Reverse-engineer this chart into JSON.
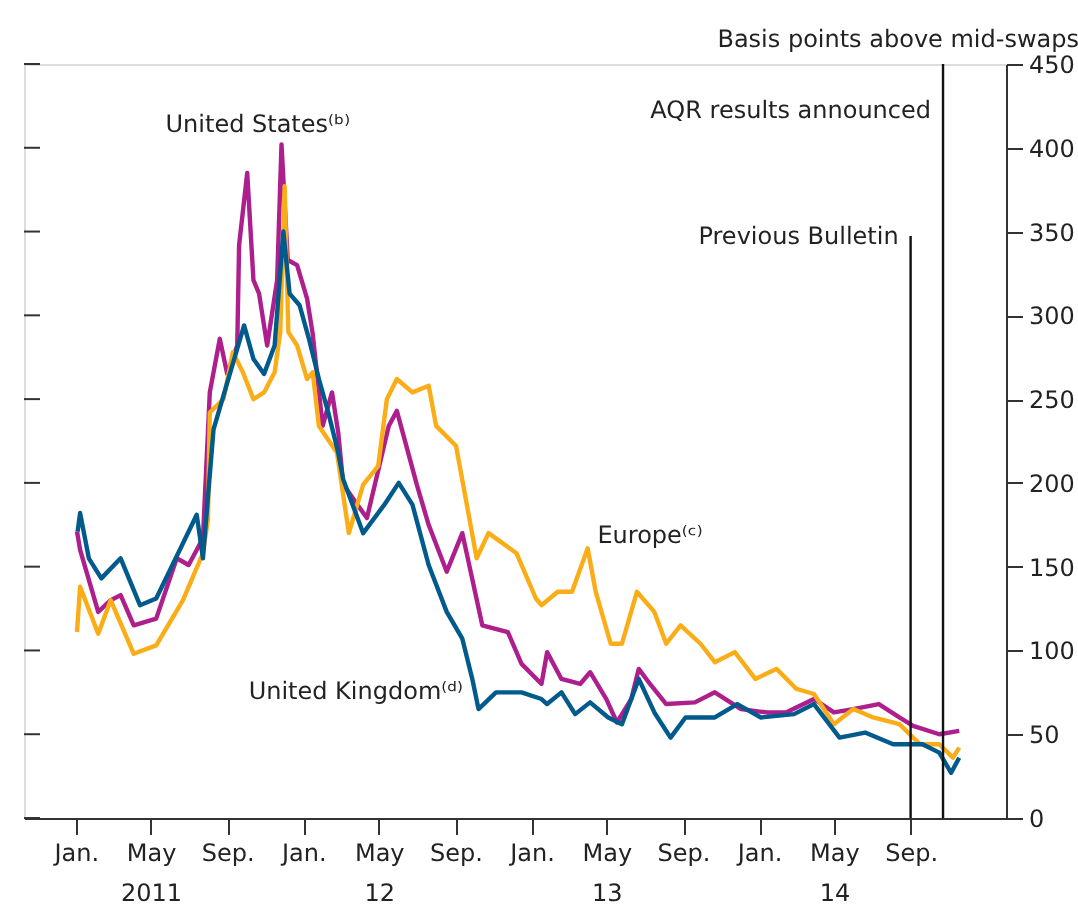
{
  "chart_data": {
    "type": "line",
    "ylabel": "Basis points above mid-swaps",
    "xlim": [
      "2010-10-10",
      "2015-02-01"
    ],
    "xticks": [
      {
        "value": "2011-01-01",
        "label": "Jan."
      },
      {
        "value": "2011-05-01",
        "label": "May\n2011"
      },
      {
        "value": "2011-09-01",
        "label": "Sep."
      },
      {
        "value": "2012-01-01",
        "label": "Jan."
      },
      {
        "value": "2012-05-01",
        "label": "May\n12"
      },
      {
        "value": "2012-09-01",
        "label": "Sep."
      },
      {
        "value": "2013-01-01",
        "label": "Jan."
      },
      {
        "value": "2013-05-01",
        "label": "May\n13"
      },
      {
        "value": "2013-09-01",
        "label": "Sep."
      },
      {
        "value": "2014-01-01",
        "label": "Jan."
      },
      {
        "value": "2014-05-01",
        "label": "May\n14"
      },
      {
        "value": "2014-09-01",
        "label": "Sep."
      }
    ],
    "ylim": [
      0,
      450
    ],
    "yticks": [
      0,
      50,
      100,
      150,
      200,
      250,
      300,
      350,
      400,
      450
    ],
    "grid": false,
    "line_style": "solid",
    "marker": "none",
    "series": [
      {
        "name": "United States⁽ᵇ⁾",
        "color": "#ad1f8c",
        "x": [
          "2011-01-03",
          "2011-01-08",
          "2011-02-06",
          "2011-02-26",
          "2011-03-14",
          "2011-04-04",
          "2011-05-10",
          "2011-06-12",
          "2011-07-01",
          "2011-07-24",
          "2011-08-04",
          "2011-08-20",
          "2011-09-01",
          "2011-09-17",
          "2011-09-20",
          "2011-10-03",
          "2011-10-13",
          "2011-10-22",
          "2011-11-04",
          "2011-11-20",
          "2011-11-27",
          "2011-12-07",
          "2011-12-22",
          "2012-01-07",
          "2012-01-16",
          "2012-02-01",
          "2012-02-16",
          "2012-02-26",
          "2012-03-05",
          "2012-04-12",
          "2012-05-17",
          "2012-05-30",
          "2012-07-01",
          "2012-07-20",
          "2012-08-18",
          "2012-09-12",
          "2012-10-14",
          "2012-11-24",
          "2012-12-16",
          "2013-01-17",
          "2013-01-26",
          "2013-02-18",
          "2013-03-20",
          "2013-04-05",
          "2013-05-01",
          "2013-05-18",
          "2013-06-10",
          "2013-06-22",
          "2013-07-10",
          "2013-08-05",
          "2013-09-20",
          "2013-10-22",
          "2013-12-03",
          "2014-01-13",
          "2014-02-13",
          "2014-03-30",
          "2014-05-01",
          "2014-06-01",
          "2014-07-12",
          "2014-08-14",
          "2014-09-05",
          "2014-10-17",
          "2014-11-18"
        ],
        "values": [
          171,
          160,
          123,
          130,
          133,
          115,
          119,
          155,
          151,
          167,
          254,
          286,
          265,
          282,
          342,
          385,
          321,
          313,
          282,
          321,
          402,
          333,
          330,
          310,
          289,
          234,
          254,
          230,
          199,
          179,
          234,
          243,
          199,
          175,
          147,
          170,
          115,
          111,
          92,
          80,
          99,
          83,
          80,
          87,
          71,
          57,
          71,
          89,
          80,
          68,
          69,
          75,
          65,
          63,
          63,
          71,
          63,
          65,
          68,
          60,
          55,
          50,
          52
        ]
      },
      {
        "name": "Europe⁽ᶜ⁾",
        "color": "#fbad18",
        "x": [
          "2011-01-03",
          "2011-01-08",
          "2011-02-06",
          "2011-02-26",
          "2011-04-04",
          "2011-05-10",
          "2011-06-22",
          "2011-07-24",
          "2011-08-01",
          "2011-08-04",
          "2011-08-26",
          "2011-09-10",
          "2011-09-26",
          "2011-10-13",
          "2011-10-30",
          "2011-11-16",
          "2011-11-25",
          "2011-12-02",
          "2011-12-08",
          "2011-12-22",
          "2012-01-07",
          "2012-01-16",
          "2012-01-26",
          "2012-02-24",
          "2012-03-14",
          "2012-04-06",
          "2012-04-30",
          "2012-05-14",
          "2012-05-30",
          "2012-06-24",
          "2012-07-20",
          "2012-08-01",
          "2012-09-02",
          "2012-10-05",
          "2012-10-24",
          "2012-12-08",
          "2013-01-08",
          "2013-01-17",
          "2013-02-12",
          "2013-03-07",
          "2013-04-01",
          "2013-04-14",
          "2013-05-08",
          "2013-05-26",
          "2013-06-19",
          "2013-07-17",
          "2013-08-05",
          "2013-08-28",
          "2013-09-29",
          "2013-10-22",
          "2013-11-23",
          "2013-12-26",
          "2014-01-29",
          "2014-03-02",
          "2014-03-30",
          "2014-05-01",
          "2014-06-01",
          "2014-07-03",
          "2014-08-14",
          "2014-09-16",
          "2014-10-17",
          "2014-11-08",
          "2014-11-18"
        ],
        "values": [
          111,
          138,
          110,
          130,
          98,
          103,
          130,
          158,
          178,
          242,
          250,
          278,
          266,
          250,
          254,
          266,
          290,
          377,
          290,
          282,
          262,
          266,
          234,
          218,
          170,
          199,
          210,
          250,
          262,
          254,
          258,
          234,
          222,
          155,
          170,
          158,
          131,
          127,
          135,
          135,
          161,
          135,
          104,
          104,
          135,
          123,
          104,
          115,
          104,
          93,
          99,
          83,
          89,
          77,
          74,
          56,
          65,
          60,
          56,
          44,
          44,
          36,
          42
        ]
      },
      {
        "name": "United Kingdom⁽ᵈ⁾",
        "color": "#005a8c",
        "x": [
          "2011-01-04",
          "2011-01-08",
          "2011-01-22",
          "2011-02-11",
          "2011-03-14",
          "2011-04-14",
          "2011-05-10",
          "2011-06-22",
          "2011-07-14",
          "2011-07-24",
          "2011-08-10",
          "2011-09-28",
          "2011-10-13",
          "2011-10-30",
          "2011-11-16",
          "2011-11-30",
          "2011-12-10",
          "2011-12-26",
          "2012-01-10",
          "2012-01-26",
          "2012-02-10",
          "2012-02-26",
          "2012-03-05",
          "2012-04-06",
          "2012-05-10",
          "2012-06-02",
          "2012-06-24",
          "2012-07-20",
          "2012-08-18",
          "2012-09-12",
          "2012-09-28",
          "2012-10-08",
          "2012-11-05",
          "2012-12-16",
          "2013-01-17",
          "2013-01-26",
          "2013-02-18",
          "2013-03-12",
          "2013-04-05",
          "2013-05-04",
          "2013-05-26",
          "2013-06-22",
          "2013-07-17",
          "2013-08-12",
          "2013-09-05",
          "2013-10-22",
          "2013-11-27",
          "2014-01-04",
          "2014-02-26",
          "2014-03-30",
          "2014-05-10",
          "2014-06-20",
          "2014-08-04",
          "2014-09-20",
          "2014-10-17",
          "2014-11-05",
          "2014-11-18"
        ],
        "values": [
          171,
          182,
          155,
          143,
          155,
          127,
          131,
          164,
          181,
          155,
          232,
          294,
          274,
          265,
          282,
          350,
          313,
          306,
          286,
          262,
          242,
          218,
          202,
          170,
          187,
          200,
          187,
          151,
          123,
          107,
          83,
          65,
          75,
          75,
          71,
          68,
          75,
          62,
          69,
          60,
          56,
          83,
          63,
          48,
          60,
          60,
          68,
          60,
          62,
          68,
          48,
          51,
          44,
          44,
          39,
          27,
          36
        ]
      }
    ],
    "ref_lines": [
      {
        "axis": "x",
        "value": "2014-09-01",
        "label": "Previous Bulletin"
      },
      {
        "axis": "x",
        "value": "2014-10-23",
        "label": "AQR results announced"
      }
    ]
  }
}
